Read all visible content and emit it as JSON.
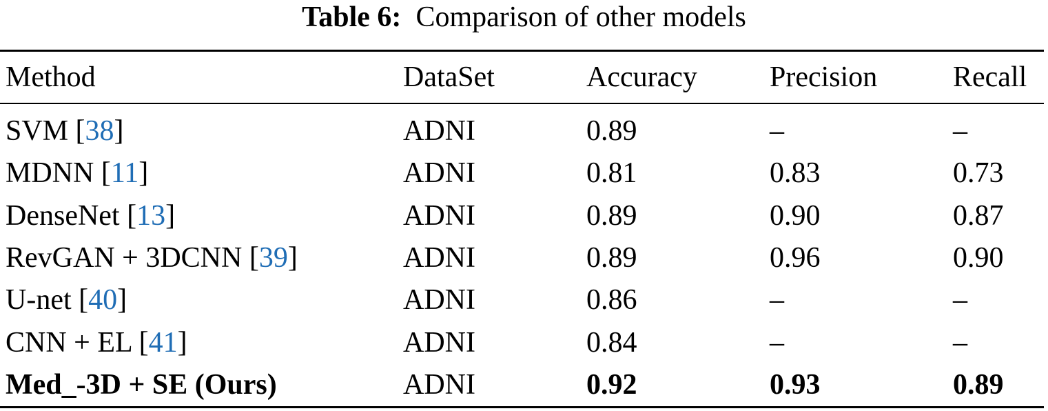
{
  "caption": {
    "label": "Table 6:",
    "text": "Comparison of other models"
  },
  "table": {
    "header": [
      "Method",
      "DataSet",
      "Accuracy",
      "Precision",
      "Recall"
    ],
    "rows": [
      [
        {
          "name": "SVM [",
          "ref": "38",
          "close": "]"
        },
        "ADNI",
        "0.89",
        "–",
        "–"
      ],
      [
        {
          "name": "MDNN [",
          "ref": "11",
          "close": "]"
        },
        "ADNI",
        "0.81",
        "0.83",
        "0.73"
      ],
      [
        {
          "name": "DenseNet [",
          "ref": "13",
          "close": "]"
        },
        "ADNI",
        "0.89",
        "0.90",
        "0.87"
      ],
      [
        {
          "name": "RevGAN + 3DCNN [",
          "ref": "39",
          "close": "]"
        },
        "ADNI",
        "0.89",
        "0.96",
        "0.90"
      ],
      [
        {
          "name": "U-net [",
          "ref": "40",
          "close": "]"
        },
        "ADNI",
        "0.86",
        "–",
        "–"
      ],
      [
        {
          "name": "CNN + EL [",
          "ref": "41",
          "close": "]"
        },
        "ADNI",
        "0.84",
        "–",
        "–"
      ],
      [
        {
          "name": "Med_-3D + SE (Ours)"
        },
        "ADNI",
        "0.92",
        "0.93",
        "0.89"
      ]
    ]
  }
}
